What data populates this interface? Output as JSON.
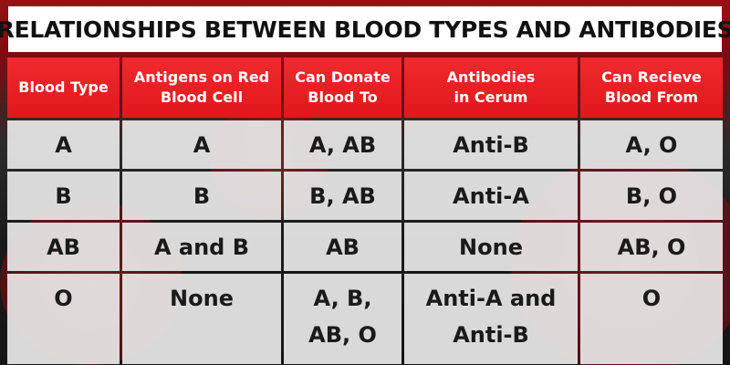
{
  "title": "RELATIONSHIPS BETWEEN BLOOD TYPES AND ANTIBODIES",
  "headers": [
    "Blood Type",
    "Antigens on Red\nBlood Cell",
    "Can Donate\nBlood To",
    "Antibodies\nin Cerum",
    "Can Recieve\nBlood From"
  ],
  "rows": [
    [
      "A",
      "A",
      "A, AB",
      "Anti-B",
      "A, O"
    ],
    [
      "B",
      "B",
      "B, AB",
      "Anti-A",
      "B, O"
    ],
    [
      "AB",
      "A and B",
      "AB",
      "None",
      "AB, O"
    ],
    [
      "O",
      "None",
      "A, B,\nAB, O",
      "Anti-A and\nAnti-B",
      "O"
    ]
  ],
  "colors": {
    "header_red": "#e2171b",
    "cell_gray": "#e8e8e8",
    "background_dark": "#1a1a1a",
    "title_background": "#ffffff"
  }
}
